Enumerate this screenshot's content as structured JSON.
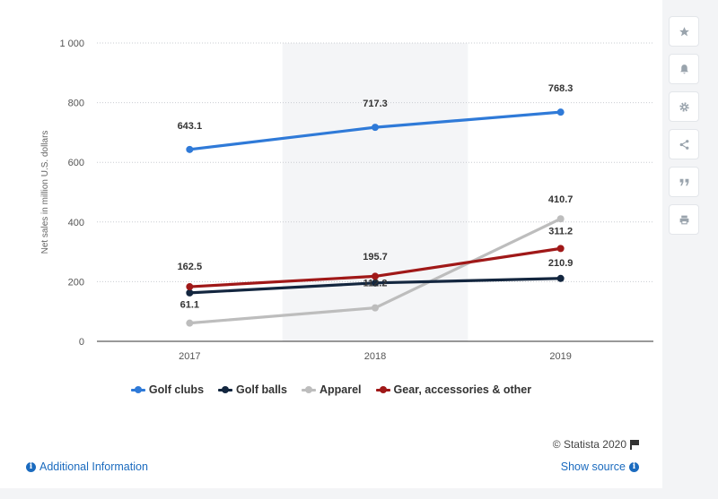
{
  "chart_data": {
    "type": "line",
    "categories": [
      "2017",
      "2018",
      "2019"
    ],
    "ylabel": "Net sales in million U.S. dollars",
    "ylim": [
      0,
      1000
    ],
    "yticks": [
      0,
      200,
      400,
      600,
      800,
      1000
    ],
    "ytick_labels": [
      "0",
      "200",
      "400",
      "600",
      "800",
      "1 000"
    ],
    "grid": true,
    "legend_position": "bottom",
    "series": [
      {
        "name": "Golf clubs",
        "color": "#2f7ad8",
        "values": [
          643.1,
          717.3,
          768.3
        ],
        "labels": [
          "643.1",
          "717.3",
          "768.3"
        ]
      },
      {
        "name": "Golf balls",
        "color": "#13263f",
        "values": [
          162.5,
          195.7,
          210.9
        ],
        "labels": [
          "162.5",
          "195.7",
          "210.9"
        ]
      },
      {
        "name": "Apparel",
        "color": "#bdbdbd",
        "values": [
          61.1,
          112.2,
          410.7
        ],
        "labels": [
          "61.1",
          "112.2",
          "410.7"
        ]
      },
      {
        "name": "Gear, accessories & other",
        "color": "#a01818",
        "values": [
          183.0,
          218.0,
          311.2
        ],
        "labels": [
          "",
          "",
          "311.2"
        ]
      }
    ]
  },
  "footer": {
    "credit": "© Statista 2020",
    "additional_info": "Additional Information",
    "show_source": "Show source"
  },
  "sidebar": {
    "icons": [
      "star-icon",
      "bell-icon",
      "gear-icon",
      "share-icon",
      "quote-icon",
      "print-icon"
    ]
  }
}
